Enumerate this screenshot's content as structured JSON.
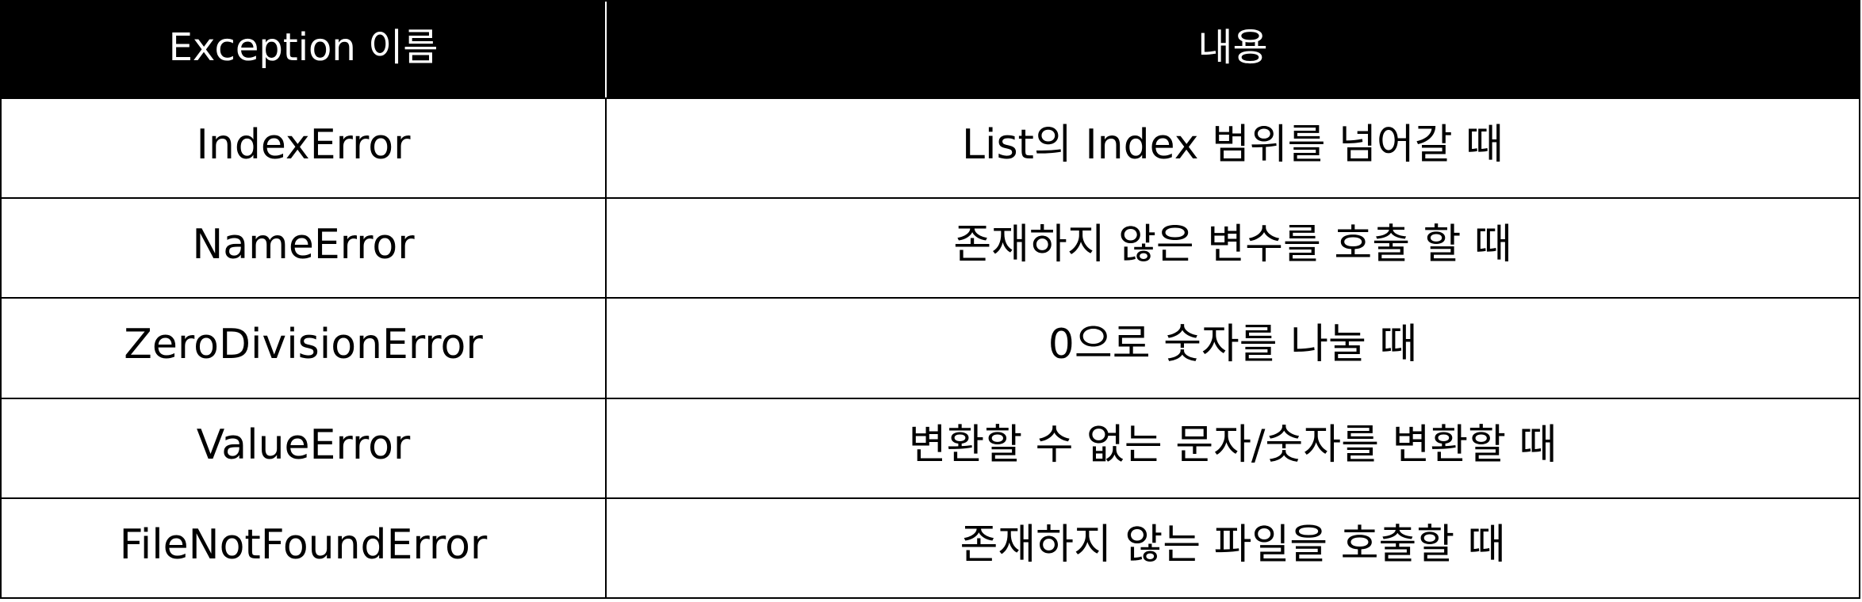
{
  "table": {
    "headers": [
      "Exception 이름",
      "내용"
    ],
    "rows": [
      [
        "IndexError",
        "List의 Index 범위를 넘어갈 때"
      ],
      [
        "NameError",
        "존재하지 않은 변수를 호출 할 때"
      ],
      [
        "ZeroDivisionError",
        "0으로 숫자를 나눌 때"
      ],
      [
        "ValueError",
        "변환할 수 없는 문자/숫자를 변환할 때"
      ],
      [
        "FileNotFoundError",
        "존재하지 않는 파일을 호출할 때"
      ]
    ]
  },
  "colors": {
    "header_bg": "#000000",
    "header_text": "#ffffff",
    "border": "#000000",
    "body_bg": "#ffffff"
  }
}
